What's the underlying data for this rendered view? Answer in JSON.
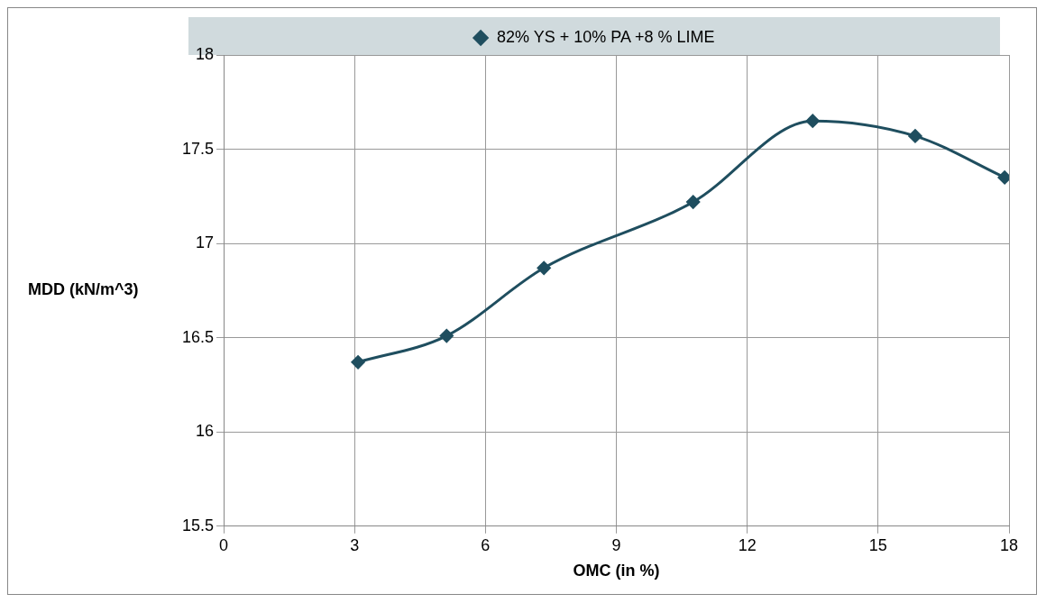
{
  "chart_data": {
    "type": "line",
    "xlabel": "OMC (in %)",
    "ylabel": "MDD (kN/m^3)",
    "x": [
      3.08,
      5.11,
      7.34,
      10.76,
      13.5,
      15.85,
      17.9
    ],
    "series": [
      {
        "name": "82% YS + 10% PA +8 % LIME",
        "color": "#1f4e5f",
        "values": [
          16.37,
          16.51,
          16.87,
          17.22,
          17.65,
          17.57,
          17.35
        ]
      }
    ],
    "xlim": [
      0,
      18
    ],
    "xticks": [
      0,
      3,
      6,
      9,
      12,
      15,
      18
    ],
    "ylim": [
      15.5,
      18
    ],
    "yticks": [
      15.5,
      16,
      16.5,
      17,
      17.5,
      18
    ],
    "grid": true,
    "legend": "top",
    "marker": "diamond",
    "line_style": "solid"
  }
}
